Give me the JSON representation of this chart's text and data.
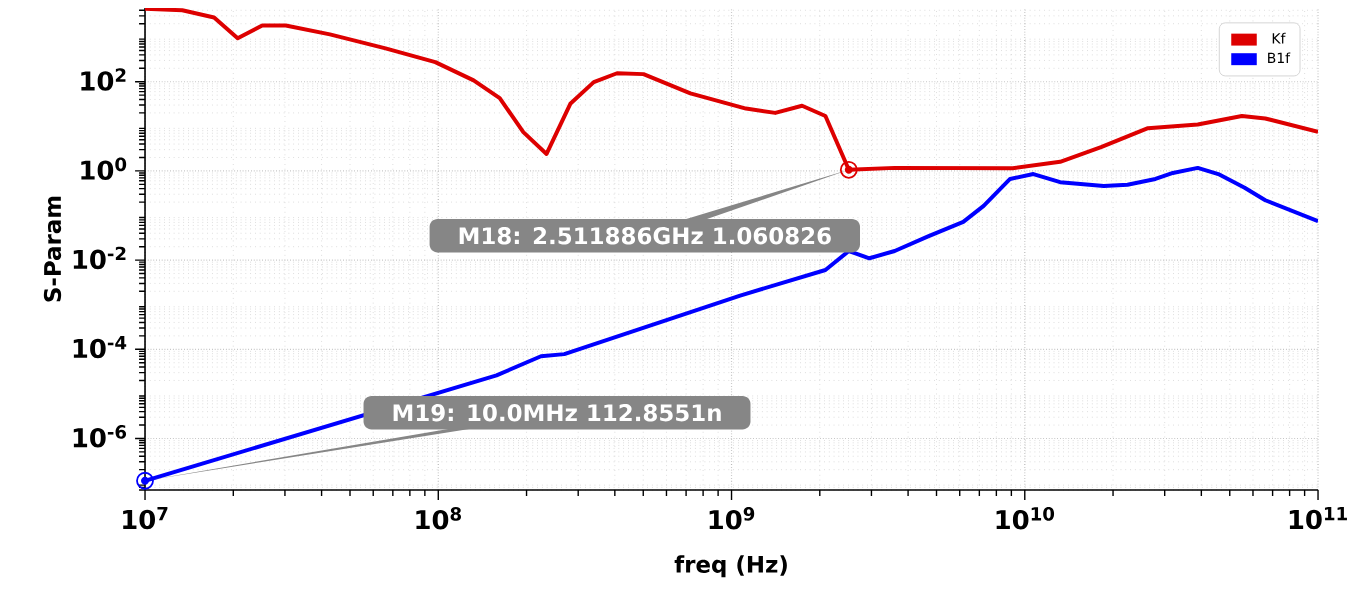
{
  "chart_data": {
    "type": "line",
    "xlabel": "freq (Hz)",
    "ylabel": "S-Param",
    "log": "xy",
    "xlim": [
      10000000,
      100000000000
    ],
    "ylim": [
      7e-08,
      4500
    ],
    "xticks": [
      {
        "value": 10000000,
        "label": "10$^{7}$"
      },
      {
        "value": 100000000,
        "label": "10$^{8}$"
      },
      {
        "value": 1000000000,
        "label": "10$^{9}$"
      },
      {
        "value": 10000000000,
        "label": "10$^{10}$"
      },
      {
        "value": 100000000000,
        "label": "10$^{11}$"
      }
    ],
    "yticks": [
      {
        "value": 1e-06,
        "label": "10$^{-6}$"
      },
      {
        "value": 0.0001,
        "label": "10$^{-4}$"
      },
      {
        "value": 0.01,
        "label": "10$^{-2}$"
      },
      {
        "value": 1,
        "label": "10$^{0}$"
      },
      {
        "value": 100,
        "label": "10$^{2}$"
      }
    ],
    "grid": true,
    "legend": "top right",
    "series": [
      {
        "name": "Kf",
        "color": "#dd0000",
        "x": [
          10000000,
          13400000,
          17200000,
          20700000,
          25100000,
          30200000,
          42700000,
          66100000,
          97700000,
          132000000,
          162000000,
          195000000,
          234000000,
          282000000,
          339000000,
          407000000,
          501000000,
          724000000,
          1120000000,
          1410000000,
          1740000000,
          2090000000,
          2511886000,
          3600000000,
          9100000000,
          13200000000,
          18200000000,
          26300000000,
          38900000000,
          55000000000,
          66100000000,
          100000000000
        ],
        "values": [
          4300,
          4000,
          2750,
          940,
          1830,
          1830,
          1150,
          560,
          275,
          107,
          43,
          7.4,
          2.4,
          32,
          98,
          155,
          148,
          55,
          25,
          20,
          29,
          17,
          1.060826,
          1.17,
          1.15,
          1.6,
          3.4,
          9.1,
          11,
          17,
          15,
          7.5
        ]
      },
      {
        "name": "B1f",
        "color": "#0000ff",
        "x": [
          10000000,
          158000000,
          224000000,
          269000000,
          1070000000,
          2090000000,
          2511886000,
          2950000000,
          3600000000,
          4680000000,
          6170000000,
          7240000000,
          8910000000,
          10700000000,
          13200000000,
          18600000000,
          22400000000,
          27900000000,
          32000000000,
          38900000000,
          45700000000,
          56200000000,
          66100000000,
          100000000000
        ],
        "values": [
          1.128551e-07,
          2.6e-05,
          7e-05,
          7.8e-05,
          0.0016,
          0.006,
          0.016,
          0.011,
          0.016,
          0.034,
          0.072,
          0.165,
          0.66,
          0.85,
          0.56,
          0.46,
          0.49,
          0.66,
          0.9,
          1.17,
          0.85,
          0.42,
          0.22,
          0.075
        ]
      }
    ],
    "annotations": [
      {
        "text": "M18: 2.511886GHz 1.060826",
        "x": 2511886000,
        "y": 1.060826
      },
      {
        "text": "M19: 10.0MHz 112.8551n",
        "x": 10000000,
        "y": 1.128551e-07
      }
    ]
  }
}
